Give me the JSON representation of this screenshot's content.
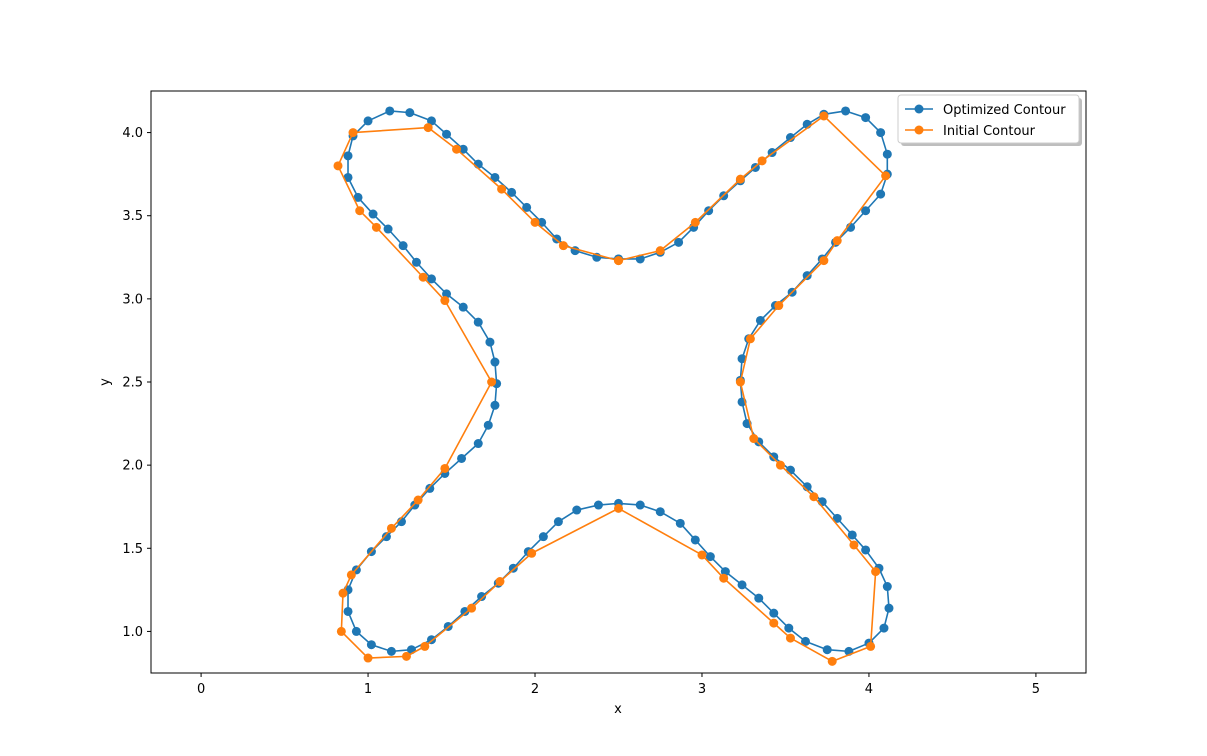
{
  "chart_data": {
    "type": "line",
    "title": "",
    "xlabel": "x",
    "ylabel": "y",
    "xlim": [
      -0.3,
      5.3
    ],
    "ylim": [
      0.75,
      4.25
    ],
    "x_ticks": [
      0,
      1,
      2,
      3,
      4,
      5
    ],
    "x_tick_labels": [
      "0",
      "1",
      "2",
      "3",
      "4",
      "5"
    ],
    "y_ticks": [
      1.0,
      1.5,
      2.0,
      2.5,
      3.0,
      3.5,
      4.0
    ],
    "y_tick_labels": [
      "1.0",
      "1.5",
      "2.0",
      "2.5",
      "3.0",
      "3.5",
      "4.0"
    ],
    "grid": false,
    "legend_position": "upper right",
    "legend": {
      "entries": [
        "Optimized Contour",
        "Initial Contour"
      ]
    },
    "series": [
      {
        "name": "Optimized Contour",
        "color": "#1f77b4",
        "marker": "circle",
        "points": [
          [
            2.5,
            3.24
          ],
          [
            2.63,
            3.24
          ],
          [
            2.75,
            3.28
          ],
          [
            2.86,
            3.34
          ],
          [
            2.95,
            3.43
          ],
          [
            3.04,
            3.53
          ],
          [
            3.13,
            3.62
          ],
          [
            3.23,
            3.71
          ],
          [
            3.32,
            3.79
          ],
          [
            3.42,
            3.88
          ],
          [
            3.53,
            3.97
          ],
          [
            3.63,
            4.05
          ],
          [
            3.73,
            4.11
          ],
          [
            3.86,
            4.13
          ],
          [
            3.98,
            4.09
          ],
          [
            4.07,
            4.0
          ],
          [
            4.11,
            3.87
          ],
          [
            4.11,
            3.75
          ],
          [
            4.07,
            3.63
          ],
          [
            3.98,
            3.53
          ],
          [
            3.89,
            3.43
          ],
          [
            3.8,
            3.34
          ],
          [
            3.72,
            3.24
          ],
          [
            3.63,
            3.14
          ],
          [
            3.54,
            3.04
          ],
          [
            3.44,
            2.96
          ],
          [
            3.35,
            2.87
          ],
          [
            3.28,
            2.76
          ],
          [
            3.24,
            2.64
          ],
          [
            3.23,
            2.51
          ],
          [
            3.24,
            2.38
          ],
          [
            3.27,
            2.25
          ],
          [
            3.34,
            2.14
          ],
          [
            3.43,
            2.05
          ],
          [
            3.53,
            1.97
          ],
          [
            3.63,
            1.87
          ],
          [
            3.72,
            1.78
          ],
          [
            3.81,
            1.68
          ],
          [
            3.9,
            1.58
          ],
          [
            3.98,
            1.49
          ],
          [
            4.06,
            1.38
          ],
          [
            4.11,
            1.27
          ],
          [
            4.12,
            1.14
          ],
          [
            4.09,
            1.02
          ],
          [
            4.0,
            0.93
          ],
          [
            3.88,
            0.88
          ],
          [
            3.75,
            0.89
          ],
          [
            3.62,
            0.94
          ],
          [
            3.52,
            1.02
          ],
          [
            3.43,
            1.11
          ],
          [
            3.34,
            1.2
          ],
          [
            3.24,
            1.28
          ],
          [
            3.14,
            1.36
          ],
          [
            3.05,
            1.45
          ],
          [
            2.96,
            1.55
          ],
          [
            2.87,
            1.65
          ],
          [
            2.75,
            1.72
          ],
          [
            2.63,
            1.76
          ],
          [
            2.5,
            1.77
          ],
          [
            2.38,
            1.76
          ],
          [
            2.25,
            1.73
          ],
          [
            2.14,
            1.66
          ],
          [
            2.05,
            1.57
          ],
          [
            1.96,
            1.48
          ],
          [
            1.87,
            1.38
          ],
          [
            1.78,
            1.29
          ],
          [
            1.68,
            1.21
          ],
          [
            1.58,
            1.12
          ],
          [
            1.48,
            1.03
          ],
          [
            1.38,
            0.95
          ],
          [
            1.26,
            0.89
          ],
          [
            1.14,
            0.88
          ],
          [
            1.02,
            0.92
          ],
          [
            0.93,
            1.0
          ],
          [
            0.88,
            1.12
          ],
          [
            0.88,
            1.25
          ],
          [
            0.93,
            1.37
          ],
          [
            1.02,
            1.48
          ],
          [
            1.11,
            1.57
          ],
          [
            1.2,
            1.66
          ],
          [
            1.28,
            1.76
          ],
          [
            1.37,
            1.86
          ],
          [
            1.46,
            1.95
          ],
          [
            1.56,
            2.04
          ],
          [
            1.66,
            2.13
          ],
          [
            1.72,
            2.24
          ],
          [
            1.76,
            2.36
          ],
          [
            1.77,
            2.49
          ],
          [
            1.76,
            2.62
          ],
          [
            1.73,
            2.74
          ],
          [
            1.66,
            2.86
          ],
          [
            1.57,
            2.95
          ],
          [
            1.47,
            3.03
          ],
          [
            1.38,
            3.12
          ],
          [
            1.29,
            3.22
          ],
          [
            1.21,
            3.32
          ],
          [
            1.12,
            3.42
          ],
          [
            1.03,
            3.51
          ],
          [
            0.94,
            3.61
          ],
          [
            0.88,
            3.73
          ],
          [
            0.88,
            3.86
          ],
          [
            0.91,
            3.98
          ],
          [
            1.0,
            4.07
          ],
          [
            1.13,
            4.13
          ],
          [
            1.25,
            4.12
          ],
          [
            1.38,
            4.07
          ],
          [
            1.47,
            3.99
          ],
          [
            1.57,
            3.9
          ],
          [
            1.66,
            3.81
          ],
          [
            1.76,
            3.73
          ],
          [
            1.86,
            3.64
          ],
          [
            1.95,
            3.55
          ],
          [
            2.04,
            3.46
          ],
          [
            2.13,
            3.36
          ],
          [
            2.24,
            3.29
          ],
          [
            2.37,
            3.25
          ],
          [
            2.5,
            3.24
          ]
        ]
      },
      {
        "name": "Initial Contour",
        "color": "#ff7f0e",
        "marker": "circle",
        "points": [
          [
            2.5,
            3.23
          ],
          [
            2.75,
            3.29
          ],
          [
            2.96,
            3.46
          ],
          [
            3.23,
            3.72
          ],
          [
            3.36,
            3.83
          ],
          [
            3.73,
            4.1
          ],
          [
            4.1,
            3.74
          ],
          [
            3.81,
            3.35
          ],
          [
            3.73,
            3.23
          ],
          [
            3.46,
            2.96
          ],
          [
            3.29,
            2.76
          ],
          [
            3.23,
            2.5
          ],
          [
            3.31,
            2.16
          ],
          [
            3.47,
            2.0
          ],
          [
            3.67,
            1.81
          ],
          [
            3.91,
            1.52
          ],
          [
            4.04,
            1.36
          ],
          [
            4.01,
            0.91
          ],
          [
            3.78,
            0.82
          ],
          [
            3.53,
            0.96
          ],
          [
            3.43,
            1.05
          ],
          [
            3.13,
            1.32
          ],
          [
            3.0,
            1.46
          ],
          [
            2.5,
            1.74
          ],
          [
            1.98,
            1.47
          ],
          [
            1.79,
            1.3
          ],
          [
            1.62,
            1.14
          ],
          [
            1.34,
            0.91
          ],
          [
            1.23,
            0.85
          ],
          [
            1.0,
            0.84
          ],
          [
            0.84,
            1.0
          ],
          [
            0.85,
            1.23
          ],
          [
            0.9,
            1.34
          ],
          [
            1.14,
            1.62
          ],
          [
            1.3,
            1.79
          ],
          [
            1.46,
            1.98
          ],
          [
            1.74,
            2.5
          ],
          [
            1.46,
            2.99
          ],
          [
            1.33,
            3.13
          ],
          [
            1.05,
            3.43
          ],
          [
            0.95,
            3.53
          ],
          [
            0.82,
            3.8
          ],
          [
            0.91,
            4.0
          ],
          [
            1.36,
            4.03
          ],
          [
            1.53,
            3.9
          ],
          [
            1.8,
            3.66
          ],
          [
            2.0,
            3.46
          ],
          [
            2.17,
            3.32
          ],
          [
            2.5,
            3.23
          ]
        ]
      }
    ]
  }
}
